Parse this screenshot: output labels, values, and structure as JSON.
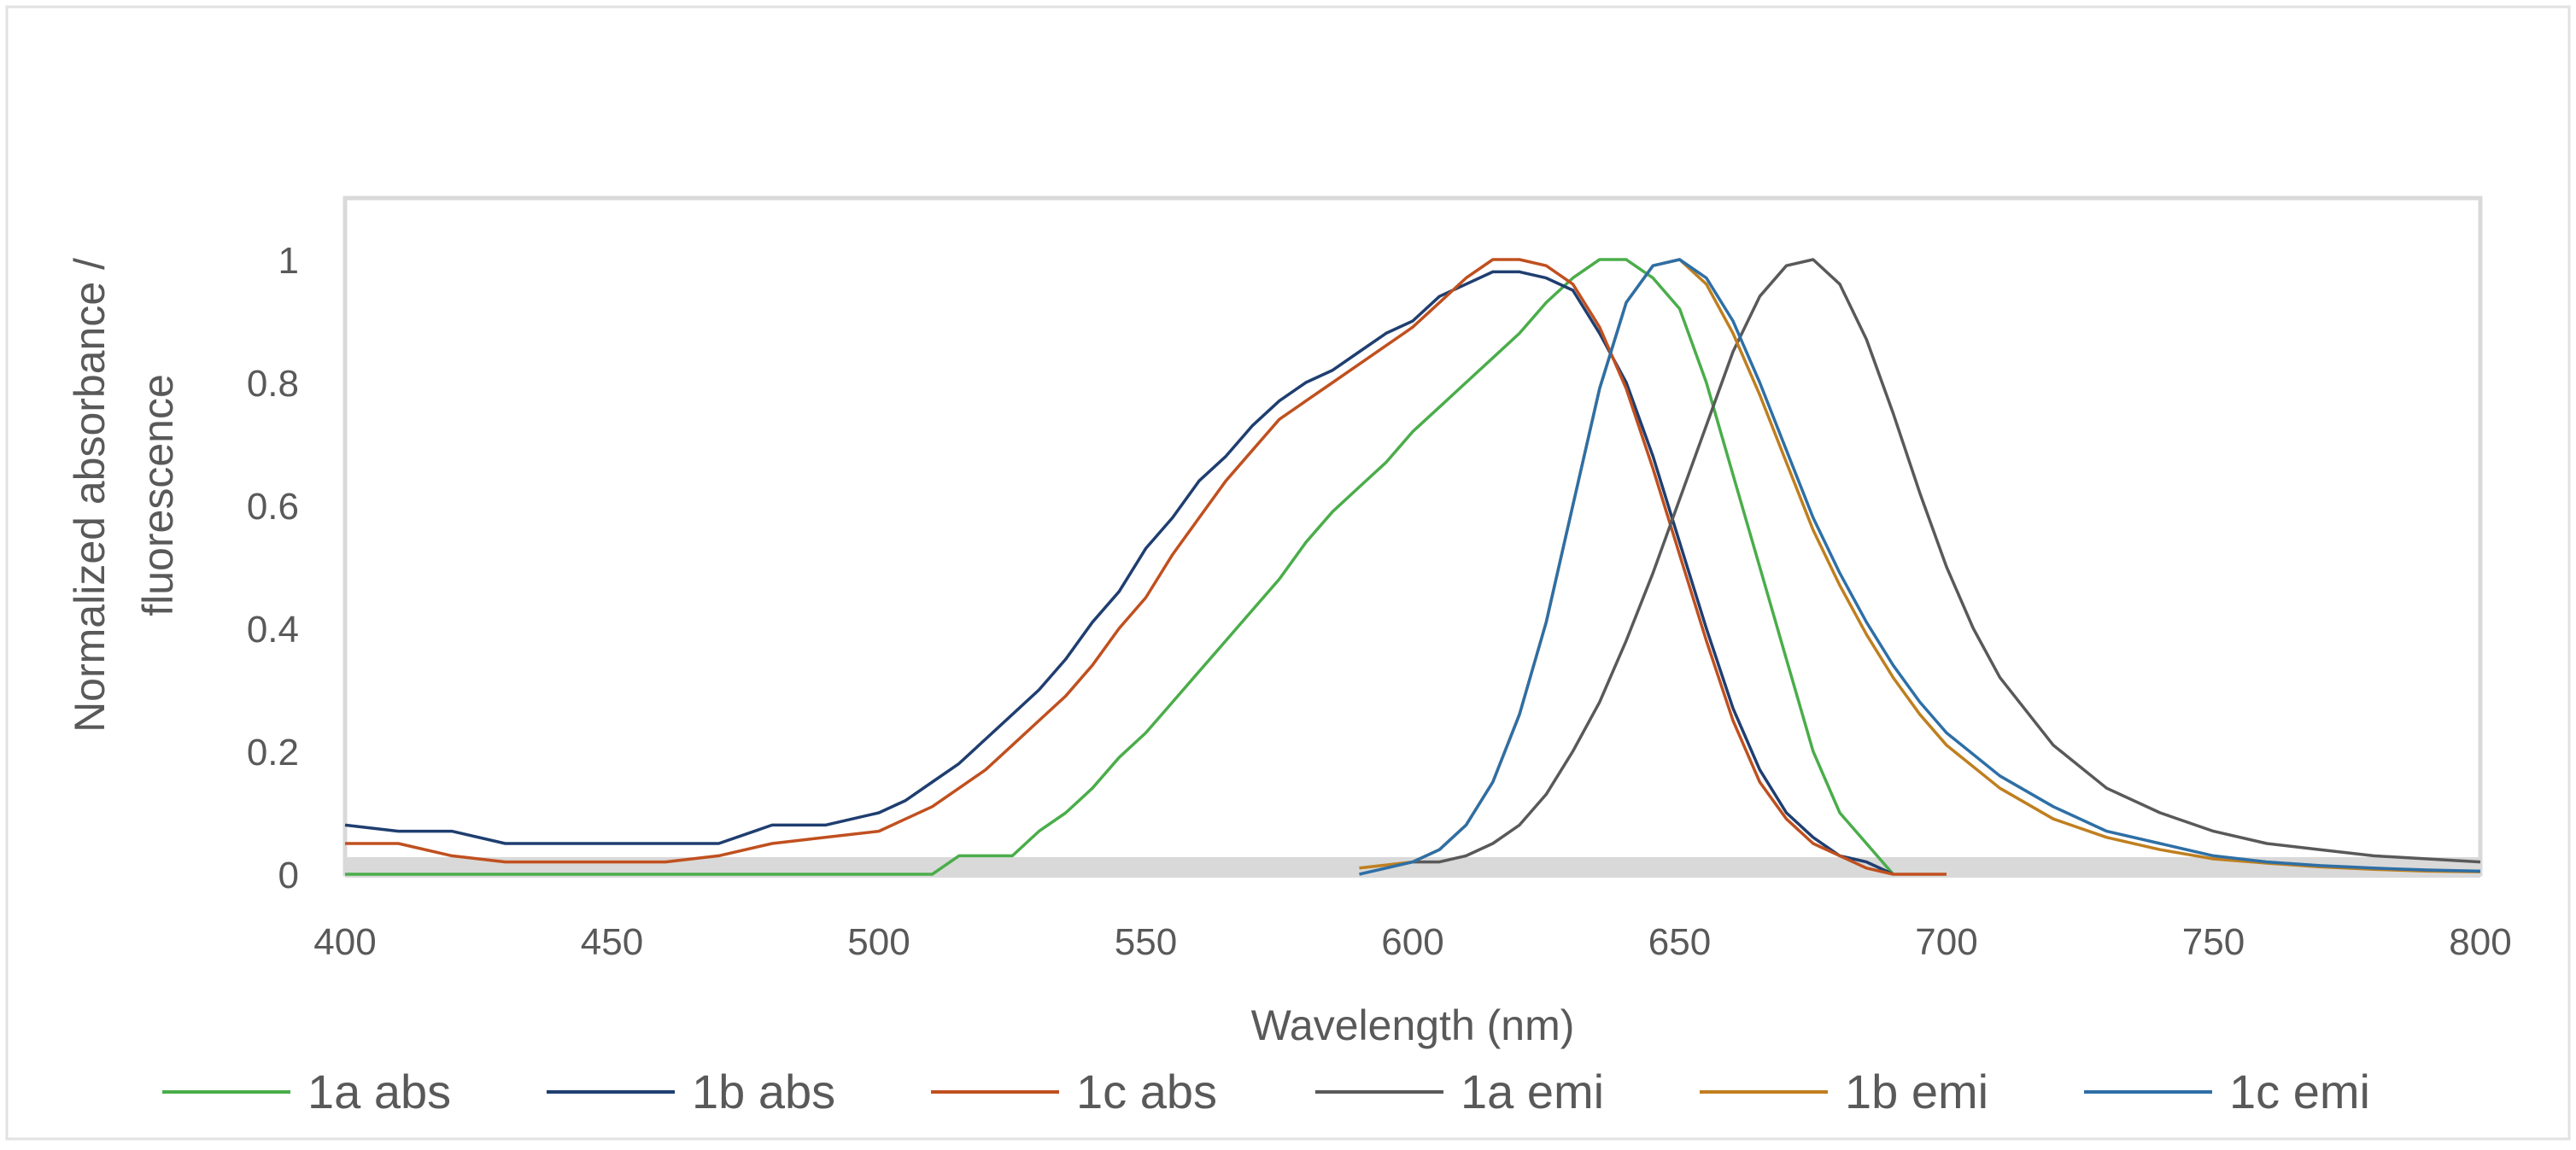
{
  "chart_data": {
    "type": "line",
    "title": "",
    "xlabel": "Wavelength (nm)",
    "ylabel_lines": [
      "Normalized absorbance /",
      "fluorescence"
    ],
    "xlim": [
      400,
      800
    ],
    "ylim": [
      0,
      1.1
    ],
    "x_ticks": [
      400,
      450,
      500,
      550,
      600,
      650,
      700,
      750,
      800
    ],
    "x_tick_labels": [
      "400",
      "450",
      "500",
      "550",
      "600",
      "650",
      "700",
      "750",
      "800"
    ],
    "y_ticks": [
      0,
      0.2,
      0.4,
      0.6,
      0.8,
      1
    ],
    "y_tick_labels": [
      "0",
      "0.2",
      "0.4",
      "0.6",
      "0.8",
      "1"
    ],
    "grid": false,
    "legend_position": "bottom",
    "series": [
      {
        "name": "1a abs",
        "color": "#4aad4a",
        "x": [
          400,
          420,
          450,
          480,
          500,
          510,
          515,
          520,
          525,
          530,
          535,
          540,
          545,
          550,
          555,
          560,
          565,
          570,
          575,
          580,
          585,
          590,
          595,
          600,
          605,
          610,
          615,
          620,
          625,
          630,
          635,
          640,
          645,
          650,
          655,
          660,
          665,
          670,
          675,
          680,
          685,
          690
        ],
        "y": [
          0.0,
          0.0,
          0.0,
          0.0,
          0.0,
          0.0,
          0.03,
          0.03,
          0.03,
          0.07,
          0.1,
          0.14,
          0.19,
          0.23,
          0.28,
          0.33,
          0.38,
          0.43,
          0.48,
          0.54,
          0.59,
          0.63,
          0.67,
          0.72,
          0.76,
          0.8,
          0.84,
          0.88,
          0.93,
          0.97,
          1.0,
          1.0,
          0.97,
          0.92,
          0.8,
          0.65,
          0.5,
          0.35,
          0.2,
          0.1,
          0.05,
          0.0
        ]
      },
      {
        "name": "1b abs",
        "color": "#1f3e70",
        "x": [
          400,
          410,
          420,
          430,
          440,
          450,
          460,
          470,
          480,
          490,
          500,
          505,
          510,
          515,
          520,
          525,
          530,
          535,
          540,
          545,
          550,
          555,
          560,
          565,
          570,
          575,
          580,
          585,
          590,
          595,
          600,
          605,
          610,
          615,
          620,
          625,
          630,
          635,
          640,
          645,
          650,
          655,
          660,
          665,
          670,
          675,
          680,
          685,
          690
        ],
        "y": [
          0.08,
          0.07,
          0.07,
          0.05,
          0.05,
          0.05,
          0.05,
          0.05,
          0.08,
          0.08,
          0.1,
          0.12,
          0.15,
          0.18,
          0.22,
          0.26,
          0.3,
          0.35,
          0.41,
          0.46,
          0.53,
          0.58,
          0.64,
          0.68,
          0.73,
          0.77,
          0.8,
          0.82,
          0.85,
          0.88,
          0.9,
          0.94,
          0.96,
          0.98,
          0.98,
          0.97,
          0.95,
          0.88,
          0.8,
          0.68,
          0.54,
          0.4,
          0.27,
          0.17,
          0.1,
          0.06,
          0.03,
          0.02,
          0.0
        ]
      },
      {
        "name": "1c abs",
        "color": "#c0501f",
        "x": [
          400,
          410,
          420,
          430,
          440,
          450,
          460,
          470,
          480,
          490,
          500,
          505,
          510,
          515,
          520,
          525,
          530,
          535,
          540,
          545,
          550,
          555,
          560,
          565,
          570,
          575,
          580,
          585,
          590,
          595,
          600,
          605,
          610,
          615,
          620,
          625,
          630,
          635,
          640,
          645,
          650,
          655,
          660,
          665,
          670,
          675,
          680,
          685,
          690,
          700
        ],
        "y": [
          0.05,
          0.05,
          0.03,
          0.02,
          0.02,
          0.02,
          0.02,
          0.03,
          0.05,
          0.06,
          0.07,
          0.09,
          0.11,
          0.14,
          0.17,
          0.21,
          0.25,
          0.29,
          0.34,
          0.4,
          0.45,
          0.52,
          0.58,
          0.64,
          0.69,
          0.74,
          0.77,
          0.8,
          0.83,
          0.86,
          0.89,
          0.93,
          0.97,
          1.0,
          1.0,
          0.99,
          0.96,
          0.89,
          0.79,
          0.66,
          0.52,
          0.38,
          0.25,
          0.15,
          0.09,
          0.05,
          0.03,
          0.01,
          0.0,
          0.0
        ]
      },
      {
        "name": "1a emi",
        "color": "#595959",
        "x": [
          600,
          605,
          610,
          615,
          620,
          625,
          630,
          635,
          640,
          645,
          650,
          655,
          660,
          665,
          670,
          675,
          680,
          685,
          690,
          695,
          700,
          705,
          710,
          720,
          730,
          740,
          750,
          760,
          770,
          780,
          790,
          800
        ],
        "y": [
          0.02,
          0.02,
          0.03,
          0.05,
          0.08,
          0.13,
          0.2,
          0.28,
          0.38,
          0.49,
          0.61,
          0.73,
          0.85,
          0.94,
          0.99,
          1.0,
          0.96,
          0.87,
          0.75,
          0.62,
          0.5,
          0.4,
          0.32,
          0.21,
          0.14,
          0.1,
          0.07,
          0.05,
          0.04,
          0.03,
          0.025,
          0.02
        ]
      },
      {
        "name": "1b emi",
        "color": "#bf7f1f",
        "x": [
          590,
          600,
          605,
          610,
          615,
          620,
          625,
          630,
          635,
          640,
          645,
          650,
          655,
          660,
          665,
          670,
          675,
          680,
          685,
          690,
          695,
          700,
          710,
          720,
          730,
          740,
          750,
          760,
          770,
          780,
          790,
          800
        ],
        "y": [
          0.01,
          0.02,
          0.04,
          0.08,
          0.15,
          0.26,
          0.41,
          0.6,
          0.79,
          0.93,
          0.99,
          1.0,
          0.96,
          0.88,
          0.78,
          0.67,
          0.56,
          0.47,
          0.39,
          0.32,
          0.26,
          0.21,
          0.14,
          0.09,
          0.06,
          0.04,
          0.025,
          0.018,
          0.012,
          0.008,
          0.005,
          0.004
        ]
      },
      {
        "name": "1c emi",
        "color": "#2e6fa6",
        "x": [
          590,
          600,
          605,
          610,
          615,
          620,
          625,
          630,
          635,
          640,
          645,
          650,
          655,
          660,
          665,
          670,
          675,
          680,
          685,
          690,
          695,
          700,
          710,
          720,
          730,
          740,
          750,
          760,
          770,
          780,
          790,
          800
        ],
        "y": [
          0.0,
          0.02,
          0.04,
          0.08,
          0.15,
          0.26,
          0.41,
          0.6,
          0.79,
          0.93,
          0.99,
          1.0,
          0.97,
          0.9,
          0.8,
          0.69,
          0.58,
          0.49,
          0.41,
          0.34,
          0.28,
          0.23,
          0.16,
          0.11,
          0.07,
          0.05,
          0.03,
          0.02,
          0.014,
          0.01,
          0.007,
          0.005
        ]
      }
    ]
  }
}
